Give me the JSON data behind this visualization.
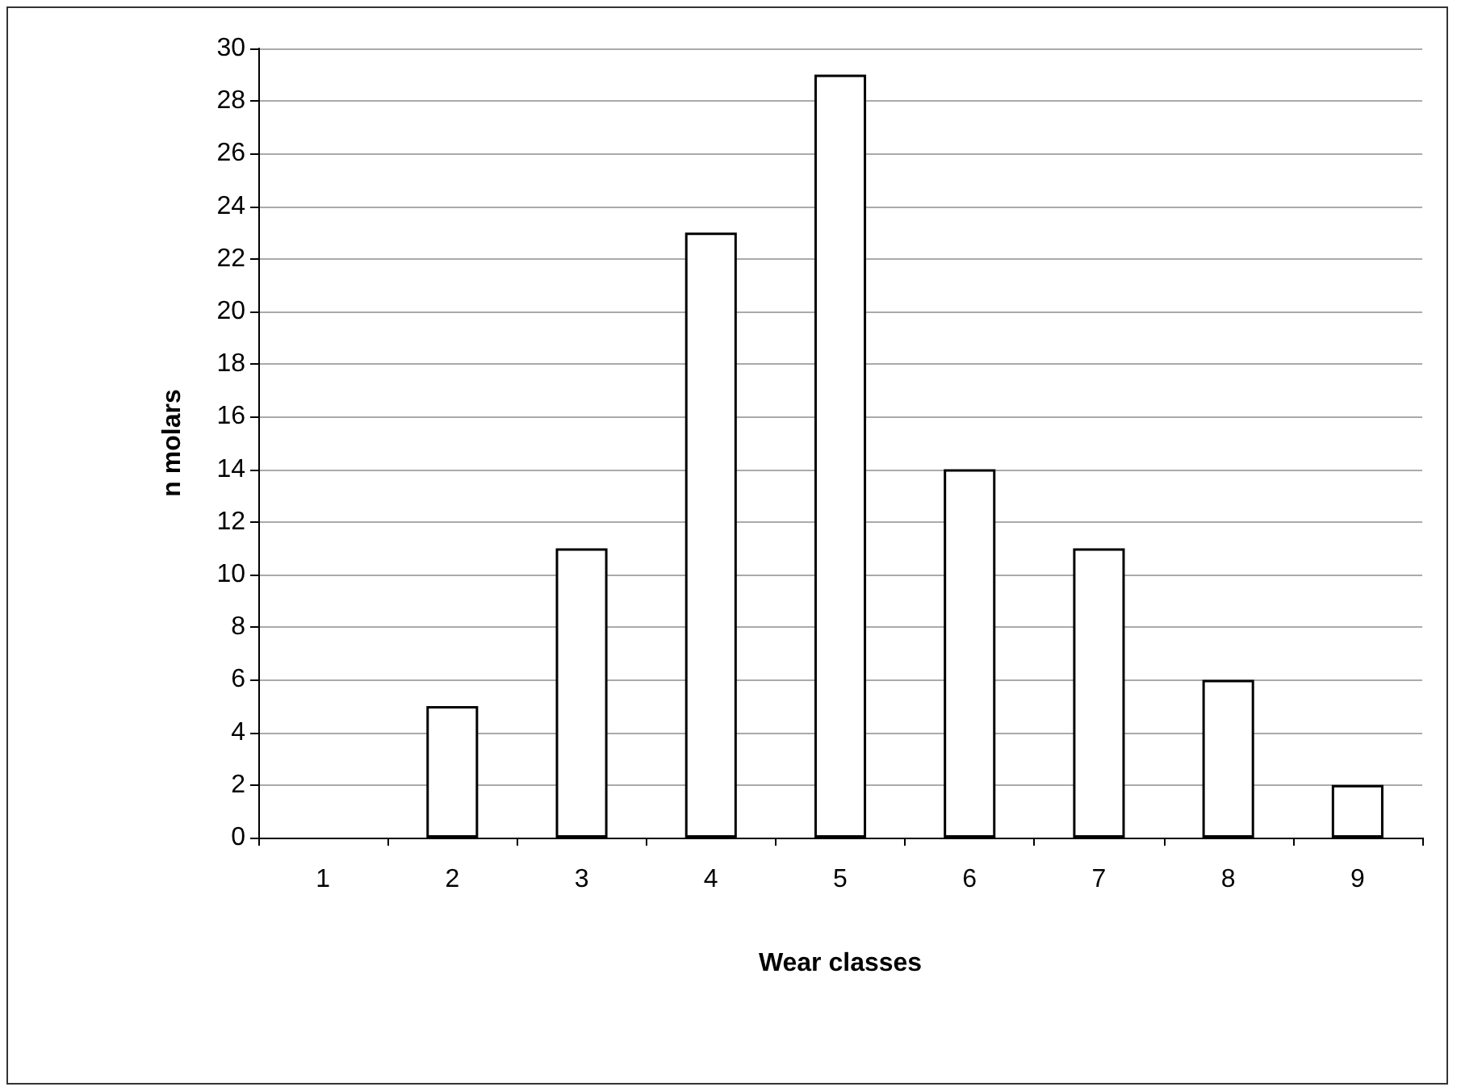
{
  "chart_data": {
    "type": "bar",
    "xlabel": "Wear classes",
    "ylabel": "n molars",
    "categories": [
      "1",
      "2",
      "3",
      "4",
      "5",
      "6",
      "7",
      "8",
      "9"
    ],
    "values": [
      0,
      5,
      11,
      23,
      29,
      14,
      11,
      6,
      2
    ],
    "color": "#ffffff",
    "ylim": [
      0,
      30
    ],
    "yticks": [
      0,
      2,
      4,
      6,
      8,
      10,
      12,
      14,
      16,
      18,
      20,
      22,
      24,
      26,
      28,
      30
    ],
    "grid": "y"
  }
}
